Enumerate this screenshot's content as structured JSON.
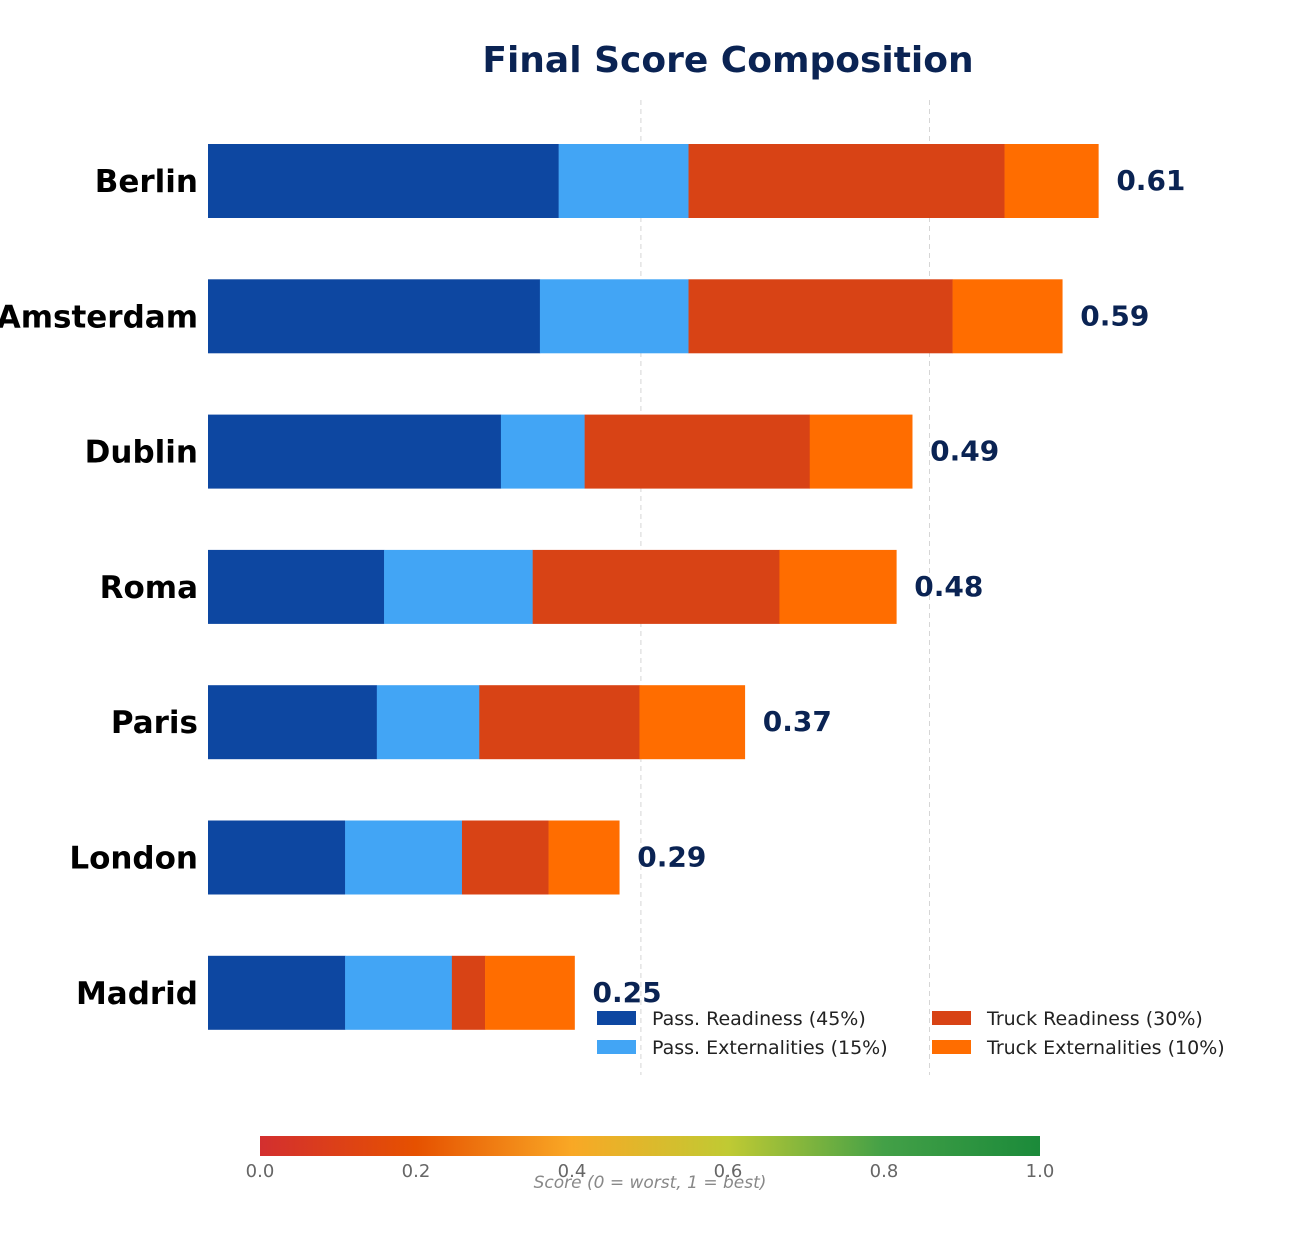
{
  "chart_data": {
    "type": "bar",
    "orientation": "horizontal",
    "stacked": true,
    "title": "Final Score Composition",
    "categories": [
      "Berlin",
      "Amsterdam",
      "Dublin",
      "Roma",
      "Paris",
      "London",
      "Madrid"
    ],
    "series": [
      {
        "name": "Pass. Readiness (45%)",
        "color": "#0d47a1",
        "values": [
          0.243,
          0.23,
          0.203,
          0.122,
          0.117,
          0.095,
          0.095
        ]
      },
      {
        "name": "Pass. Externalities (15%)",
        "color": "#42a5f5",
        "values": [
          0.09,
          0.103,
          0.058,
          0.103,
          0.071,
          0.081,
          0.074
        ]
      },
      {
        "name": "Truck Readiness (30%)",
        "color": "#d84315",
        "values": [
          0.219,
          0.183,
          0.156,
          0.171,
          0.111,
          0.06,
          0.023
        ]
      },
      {
        "name": "Truck Externalities (10%)",
        "color": "#ff6d00",
        "values": [
          0.065,
          0.076,
          0.071,
          0.081,
          0.073,
          0.049,
          0.062
        ]
      }
    ],
    "totals": [
      "0.61",
      "0.59",
      "0.49",
      "0.48",
      "0.37",
      "0.29",
      "0.25"
    ],
    "xlim": [
      0,
      0.9
    ],
    "gridlines_x": [
      0.3,
      0.5
    ],
    "grid": true,
    "legend_position": "bottom-right",
    "colorbar": {
      "label": "Score (0 = worst, 1 = best)",
      "ticks": [
        "0.0",
        "0.2",
        "0.4",
        "0.6",
        "0.8",
        "1.0"
      ],
      "tick_values": [
        0,
        0.2,
        0.4,
        0.6,
        0.8,
        1.0
      ],
      "range": [
        0,
        1
      ],
      "gradient": [
        "#d32f2f",
        "#e65100",
        "#f9a825",
        "#c0ca33",
        "#43a047",
        "#1b8a3a"
      ]
    },
    "title_color": "#0a2353",
    "total_color": "#0a2353",
    "category_label_color": "#000000"
  }
}
